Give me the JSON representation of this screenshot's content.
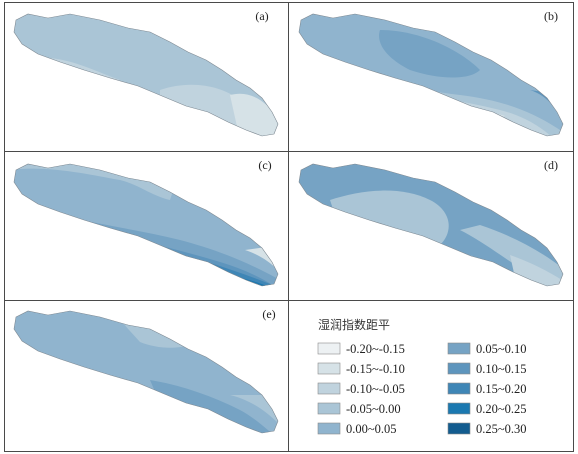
{
  "panels": [
    {
      "id": "a",
      "label": "(a)"
    },
    {
      "id": "b",
      "label": "(b)"
    },
    {
      "id": "c",
      "label": "(c)"
    },
    {
      "id": "d",
      "label": "(d)"
    },
    {
      "id": "e",
      "label": "(e)"
    }
  ],
  "legend": {
    "title": "湿润指数距平",
    "items": [
      {
        "label": "-0.20~-0.15",
        "color": "#edf1f3"
      },
      {
        "label": "-0.15~-0.10",
        "color": "#d6e2e7"
      },
      {
        "label": "-0.10~-0.05",
        "color": "#c0d3de"
      },
      {
        "label": "-0.05~0.00",
        "color": "#aac5d6"
      },
      {
        "label": "0.00~0.05",
        "color": "#90b4ce"
      },
      {
        "label": "0.05~0.10",
        "color": "#76a3c4"
      },
      {
        "label": "0.10~0.15",
        "color": "#5e95bd"
      },
      {
        "label": "0.15~0.20",
        "color": "#3f86b6"
      },
      {
        "label": "0.20~0.25",
        "color": "#1b78b0"
      },
      {
        "label": "0.25~0.30",
        "color": "#135c8f"
      }
    ]
  }
}
